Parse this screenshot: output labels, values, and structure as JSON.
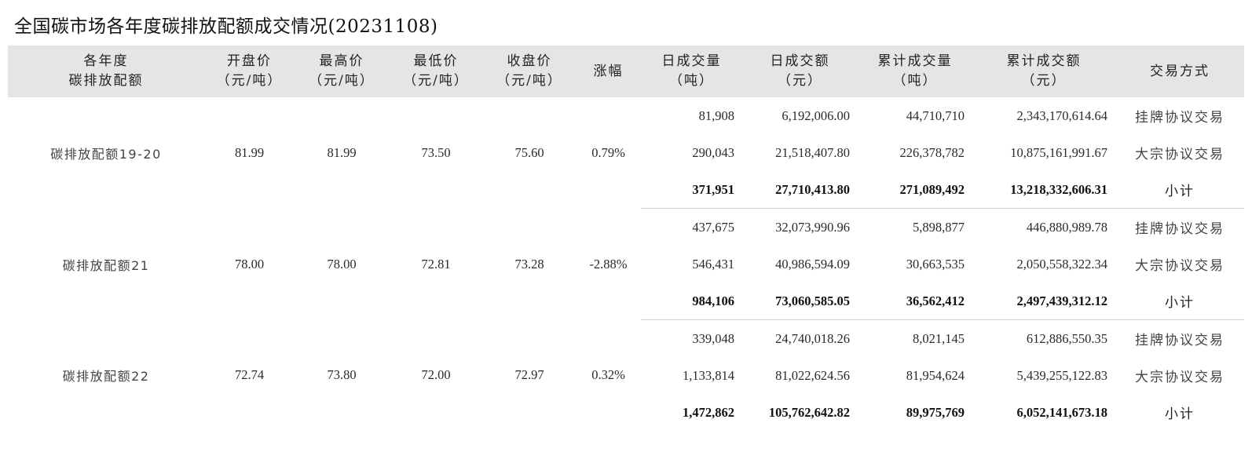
{
  "title": "全国碳市场各年度碳排放配额成交情况(20231108)",
  "header": {
    "col_year": [
      "各年度",
      "碳排放配额"
    ],
    "col_open": [
      "开盘价",
      "（元/吨）"
    ],
    "col_high": [
      "最高价",
      "（元/吨）"
    ],
    "col_low": [
      "最低价",
      "（元/吨）"
    ],
    "col_close": [
      "收盘价",
      "（元/吨）"
    ],
    "col_change": [
      "涨幅"
    ],
    "col_day_vol": [
      "日成交量",
      "（吨）"
    ],
    "col_day_amt": [
      "日成交额",
      "（元）"
    ],
    "col_cum_vol": [
      "累计成交量",
      "（吨）"
    ],
    "col_cum_amt": [
      "累计成交额",
      "（元）"
    ],
    "col_method": [
      "交易方式"
    ]
  },
  "groups": [
    {
      "year": "碳排放配额19-20",
      "open": "81.99",
      "high": "81.99",
      "low": "73.50",
      "close": "75.60",
      "change": "0.79%",
      "rows": [
        {
          "day_vol": "81,908",
          "day_amt": "6,192,006.00",
          "cum_vol": "44,710,710",
          "cum_amt": "2,343,170,614.64",
          "method": "挂牌协议交易"
        },
        {
          "day_vol": "290,043",
          "day_amt": "21,518,407.80",
          "cum_vol": "226,378,782",
          "cum_amt": "10,875,161,991.67",
          "method": "大宗协议交易"
        },
        {
          "day_vol": "371,951",
          "day_amt": "27,710,413.80",
          "cum_vol": "271,089,492",
          "cum_amt": "13,218,332,606.31",
          "method": "小计"
        }
      ]
    },
    {
      "year": "碳排放配额21",
      "open": "78.00",
      "high": "78.00",
      "low": "72.81",
      "close": "73.28",
      "change": "-2.88%",
      "rows": [
        {
          "day_vol": "437,675",
          "day_amt": "32,073,990.96",
          "cum_vol": "5,898,877",
          "cum_amt": "446,880,989.78",
          "method": "挂牌协议交易"
        },
        {
          "day_vol": "546,431",
          "day_amt": "40,986,594.09",
          "cum_vol": "30,663,535",
          "cum_amt": "2,050,558,322.34",
          "method": "大宗协议交易"
        },
        {
          "day_vol": "984,106",
          "day_amt": "73,060,585.05",
          "cum_vol": "36,562,412",
          "cum_amt": "2,497,439,312.12",
          "method": "小计"
        }
      ]
    },
    {
      "year": "碳排放配额22",
      "open": "72.74",
      "high": "73.80",
      "low": "72.00",
      "close": "72.97",
      "change": "0.32%",
      "rows": [
        {
          "day_vol": "339,048",
          "day_amt": "24,740,018.26",
          "cum_vol": "8,021,145",
          "cum_amt": "612,886,550.35",
          "method": "挂牌协议交易"
        },
        {
          "day_vol": "1,133,814",
          "day_amt": "81,022,624.56",
          "cum_vol": "81,954,624",
          "cum_amt": "5,439,255,122.83",
          "method": "大宗协议交易"
        },
        {
          "day_vol": "1,472,862",
          "day_amt": "105,762,642.82",
          "cum_vol": "89,975,769",
          "cum_amt": "6,052,141,673.18",
          "method": "小计"
        }
      ]
    }
  ]
}
